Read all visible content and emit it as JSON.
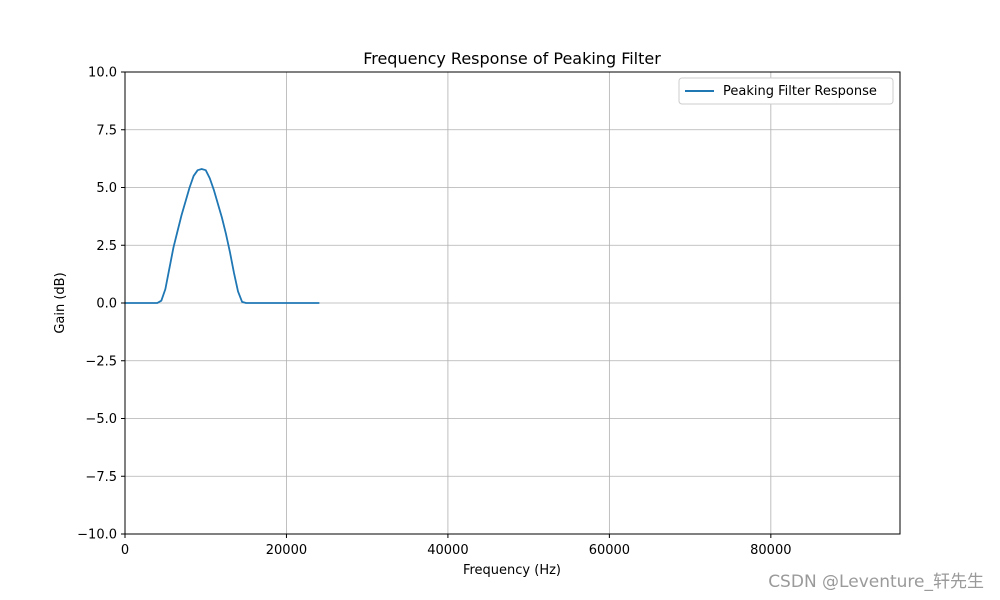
{
  "chart_data": {
    "type": "line",
    "title": "Frequency Response of Peaking Filter",
    "xlabel": "Frequency (Hz)",
    "ylabel": "Gain (dB)",
    "xlim": [
      0,
      96000
    ],
    "ylim": [
      -10,
      10
    ],
    "xticks": [
      0,
      20000,
      40000,
      60000,
      80000
    ],
    "xtick_labels": [
      "0",
      "20000",
      "40000",
      "60000",
      "80000"
    ],
    "yticks": [
      10,
      7.5,
      5,
      2.5,
      0,
      -2.5,
      -5,
      -7.5,
      -10
    ],
    "ytick_labels": [
      "10.0",
      "7.5",
      "5.0",
      "2.5",
      "0.0",
      "−2.5",
      "−5.0",
      "−7.5",
      "−10.0"
    ],
    "grid": true,
    "legend_position": "top-right",
    "series": [
      {
        "name": "Peaking Filter Response",
        "color": "#1f77b4",
        "x": [
          0,
          1000,
          2000,
          3000,
          4000,
          4500,
          5000,
          5500,
          6000,
          6500,
          7000,
          7500,
          8000,
          8500,
          9000,
          9500,
          10000,
          10500,
          11000,
          11500,
          12000,
          12500,
          13000,
          13500,
          14000,
          14500,
          15000,
          15500,
          16000,
          17000,
          18000,
          19000,
          20000,
          21000,
          22000,
          23000,
          24000
        ],
        "y": [
          0,
          0,
          0,
          0,
          0,
          0.1,
          0.6,
          1.5,
          2.4,
          3.1,
          3.8,
          4.4,
          5.0,
          5.5,
          5.75,
          5.8,
          5.75,
          5.4,
          4.9,
          4.3,
          3.7,
          3.0,
          2.2,
          1.3,
          0.5,
          0.05,
          0,
          0,
          0,
          0,
          0,
          0,
          0,
          0,
          0,
          0,
          0
        ]
      }
    ]
  },
  "watermark": "CSDN @Leventure_轩先生"
}
